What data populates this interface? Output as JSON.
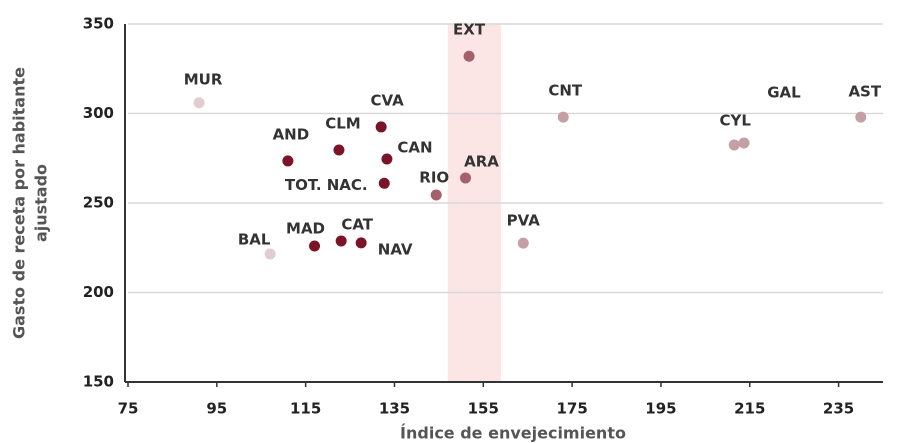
{
  "chart_data": {
    "type": "scatter",
    "xlabel": "Índice de envejecimiento",
    "ylabel": [
      "Gasto de receta por habitante",
      "ajustado"
    ],
    "labels": [
      "MUR",
      "BAL",
      "AND",
      "MAD",
      "CLM",
      "CAT",
      "NAV",
      "CVA",
      "TOT. NAC.",
      "CAN",
      "RIO",
      "ARA",
      "EXT",
      "PVA",
      "CNT",
      "CYL",
      "GAL",
      "AST"
    ],
    "x": [
      91,
      107,
      111,
      117,
      122.5,
      123,
      127.5,
      132,
      132.7,
      133.3,
      144.4,
      151,
      151.8,
      164,
      173,
      211.5,
      213.7,
      240
    ],
    "values": [
      306,
      221.5,
      273.5,
      226,
      279.6,
      228.8,
      227.7,
      292.5,
      261,
      274.6,
      254.5,
      264,
      332,
      227.6,
      298,
      282.4,
      283.5,
      298
    ],
    "colors": [
      "#dfcdd0",
      "#dfcdd0",
      "#7b1428",
      "#7b1428",
      "#7b1428",
      "#7b1428",
      "#7b1428",
      "#7b1428",
      "#7b1428",
      "#7b1428",
      "#a5616b",
      "#a5616b",
      "#a5616b",
      "#c4a0a5",
      "#c4a0a5",
      "#c4a0a5",
      "#c4a0a5",
      "#c4a0a5"
    ],
    "highlight_band": [
      147,
      159
    ],
    "highlight_color": "#fbe5e5",
    "xlim": [
      75,
      245
    ],
    "xticks": [
      75,
      95,
      115,
      135,
      155,
      175,
      195,
      215,
      235
    ],
    "ylim": [
      150,
      350
    ],
    "yticks": [
      150,
      200,
      250,
      300,
      350
    ],
    "grid": true
  }
}
